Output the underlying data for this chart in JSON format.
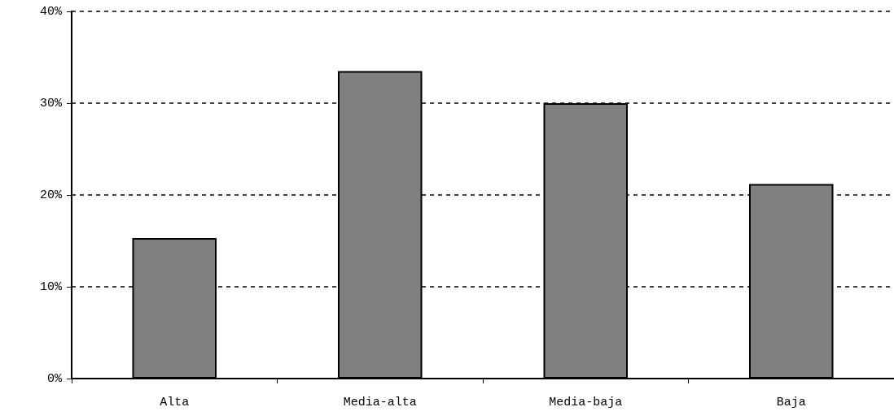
{
  "chart_data": {
    "type": "bar",
    "categories": [
      "Alta",
      "Media-alta",
      "Media-baja",
      "Baja"
    ],
    "values": [
      15.3,
      33.5,
      30,
      21.2
    ],
    "color": "#808080",
    "ylim": [
      0,
      40
    ],
    "yticks": [
      {
        "value": 0,
        "label": "0%"
      },
      {
        "value": 10,
        "label": "10%"
      },
      {
        "value": 20,
        "label": "20%"
      },
      {
        "value": 30,
        "label": "30%"
      },
      {
        "value": 40,
        "label": "40%"
      }
    ],
    "grid": "y",
    "line_style": "dashed"
  }
}
